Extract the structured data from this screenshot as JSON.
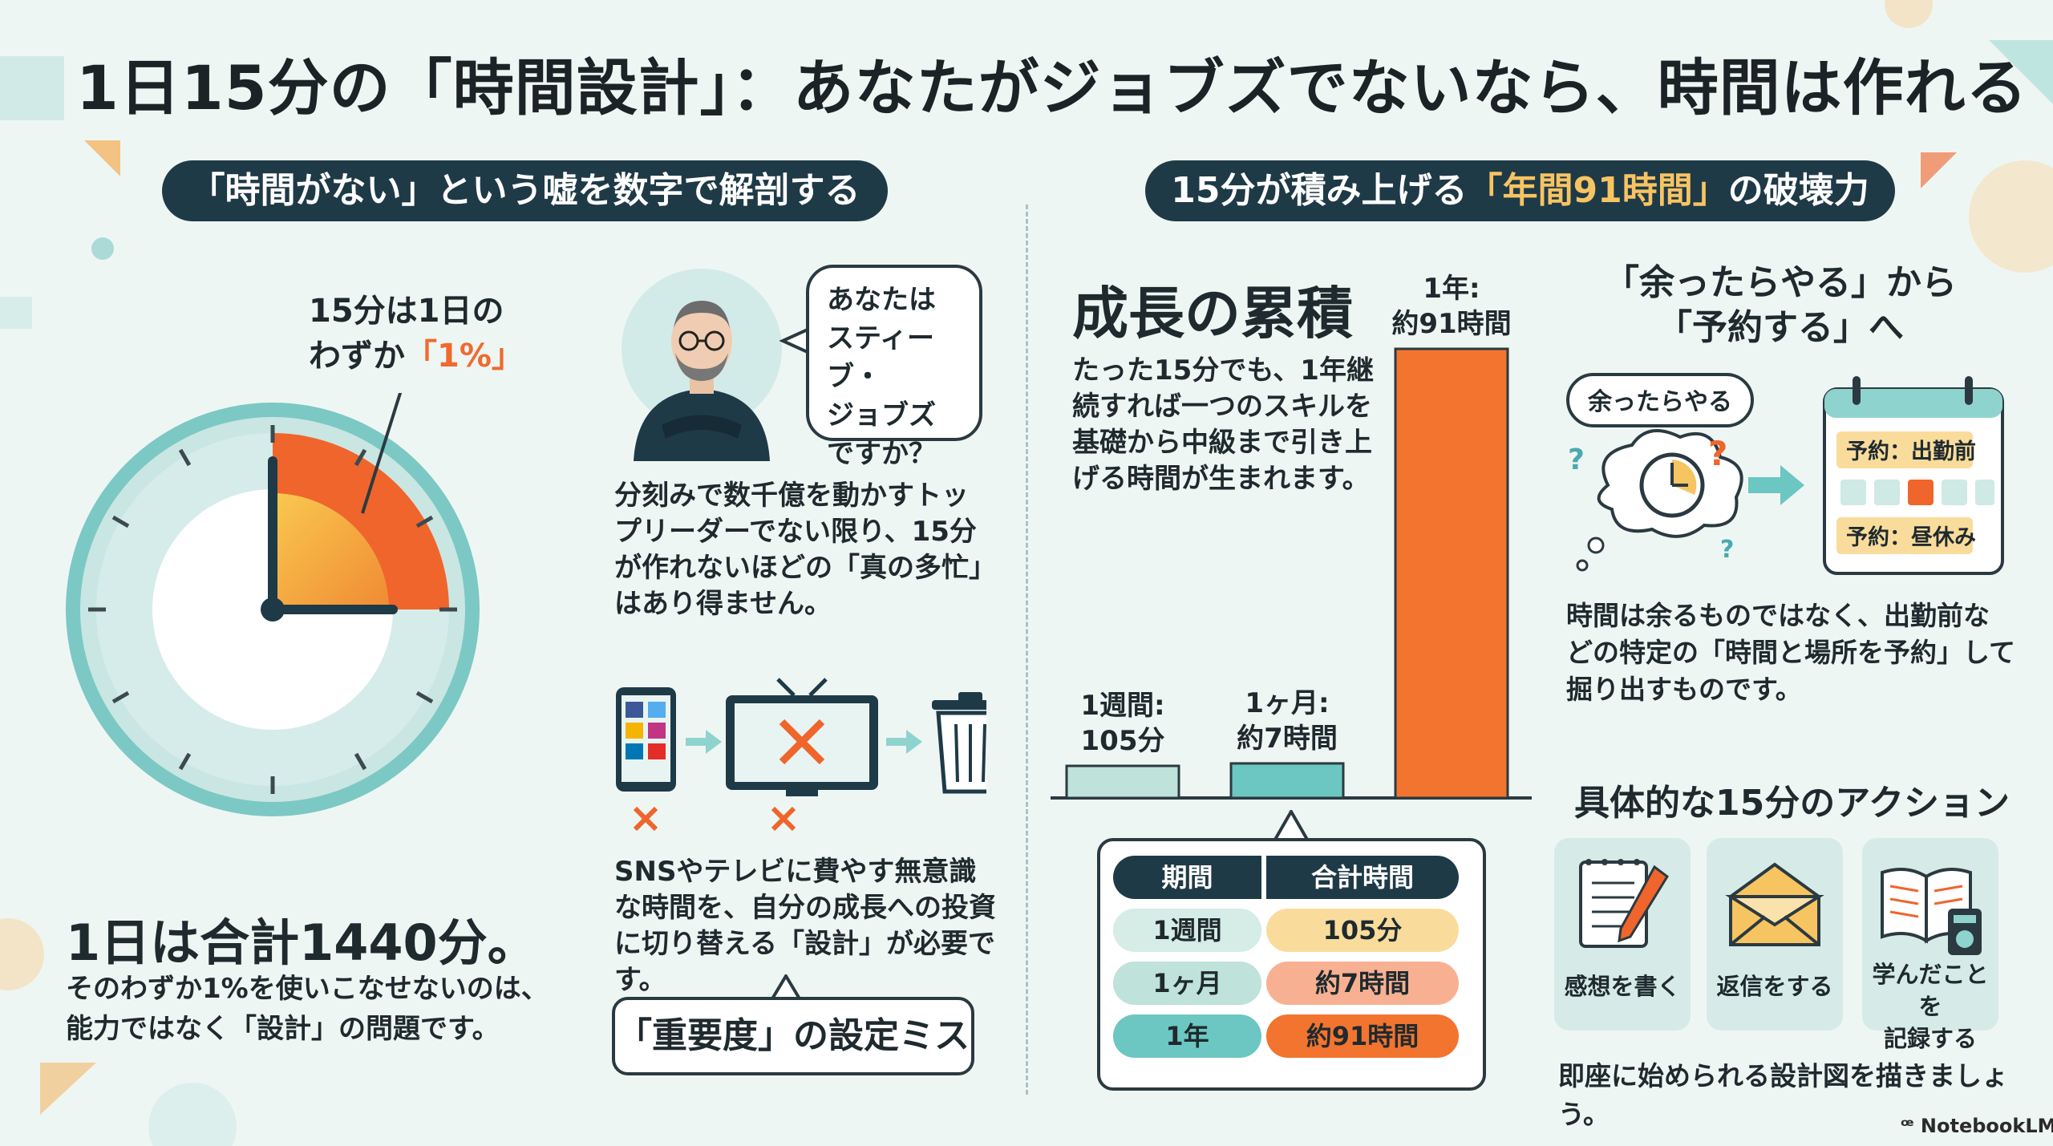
{
  "title": "1日15分の「時間設計」：あなたがジョブズでないなら、時間は作れる",
  "left": {
    "section_title": "「時間がない」という嘘を数字で解剖する",
    "clock_callout_line1": "15分は1日の",
    "clock_callout_line2_prefix": "わずか",
    "clock_callout_highlight": "「1%」",
    "total_heading": "1日は合計1440分。",
    "total_desc_line1": "そのわずか1%を使いこなせないのは、",
    "total_desc_line2": "能力ではなく「設計」の問題です。",
    "bubble_text": "あなたは\nスティーブ・\nジョブズ\nですか？",
    "jobs_text": "分刻みで数千億を動かすトップリーダーでない限り、15分が作れないほどの「真の多忙」はあり得ません。",
    "sns_text": "SNSやテレビに費やす無意識な時間を、自分の成長への投資に切り替える「設計」が必要です。",
    "mistake_label": "「重要度」の設定ミス"
  },
  "middle": {
    "section_title_prefix": "15分が積み上げる",
    "section_title_highlight": "「年間91時間」",
    "section_title_suffix": "の破壊力",
    "growth_heading": "成長の累積",
    "growth_text": "たった15分でも、1年継続すれば一つのスキルを基礎から中級まで引き上げる時間が生まれます。",
    "table": {
      "headers": [
        "期間",
        "合計時間"
      ],
      "rows": [
        {
          "period": "1週間",
          "total": "105分",
          "period_color": "#d6ece6",
          "total_color": "#f9dc9c"
        },
        {
          "period": "1ヶ月",
          "total": "約7時間",
          "period_color": "#bfe2da",
          "total_color": "#f7b192"
        },
        {
          "period": "1年",
          "total": "約91時間",
          "period_color": "#6cc6c1",
          "total_color": "#f2742f"
        }
      ]
    }
  },
  "chart_data": {
    "type": "bar",
    "categories": [
      "1週間",
      "1ヶ月",
      "1年"
    ],
    "values": [
      1.75,
      7,
      91
    ],
    "unit": "時間",
    "labels": [
      [
        "1週間:",
        "105分"
      ],
      [
        "1ヶ月:",
        "約7時間"
      ],
      [
        "1年:",
        "約91時間"
      ]
    ],
    "colors": [
      "#bfe2da",
      "#6cc6c1",
      "#f2742f"
    ],
    "title": "",
    "xlabel": "",
    "ylabel": "",
    "grid": false
  },
  "right": {
    "reserve_heading_line1": "「余ったらやる」から",
    "reserve_heading_line2": "「予約する」へ",
    "cloud_label": "余ったらやる",
    "calendar_item1": "予約：出勤前",
    "calendar_item2": "予約：昼休み",
    "reserve_text": "時間は余るものではなく、出勤前などの特定の「時間と場所を予約」して掘り出すものです。",
    "action_heading": "具体的な15分のアクション",
    "actions": [
      {
        "label": "感想を書く",
        "icon": "notepad-pen-icon"
      },
      {
        "label": "返信をする",
        "icon": "envelope-icon"
      },
      {
        "label": "学んだことを\n記録する",
        "icon": "book-recorder-icon"
      }
    ],
    "action_footer": "即座に始められる設計図を描きましょう。"
  },
  "brand": "NotebookLM",
  "colors": {
    "navy": "#1f3a47",
    "orange": "#ef6a2f",
    "teal": "#6cc6c1",
    "gold": "#f7c462"
  }
}
